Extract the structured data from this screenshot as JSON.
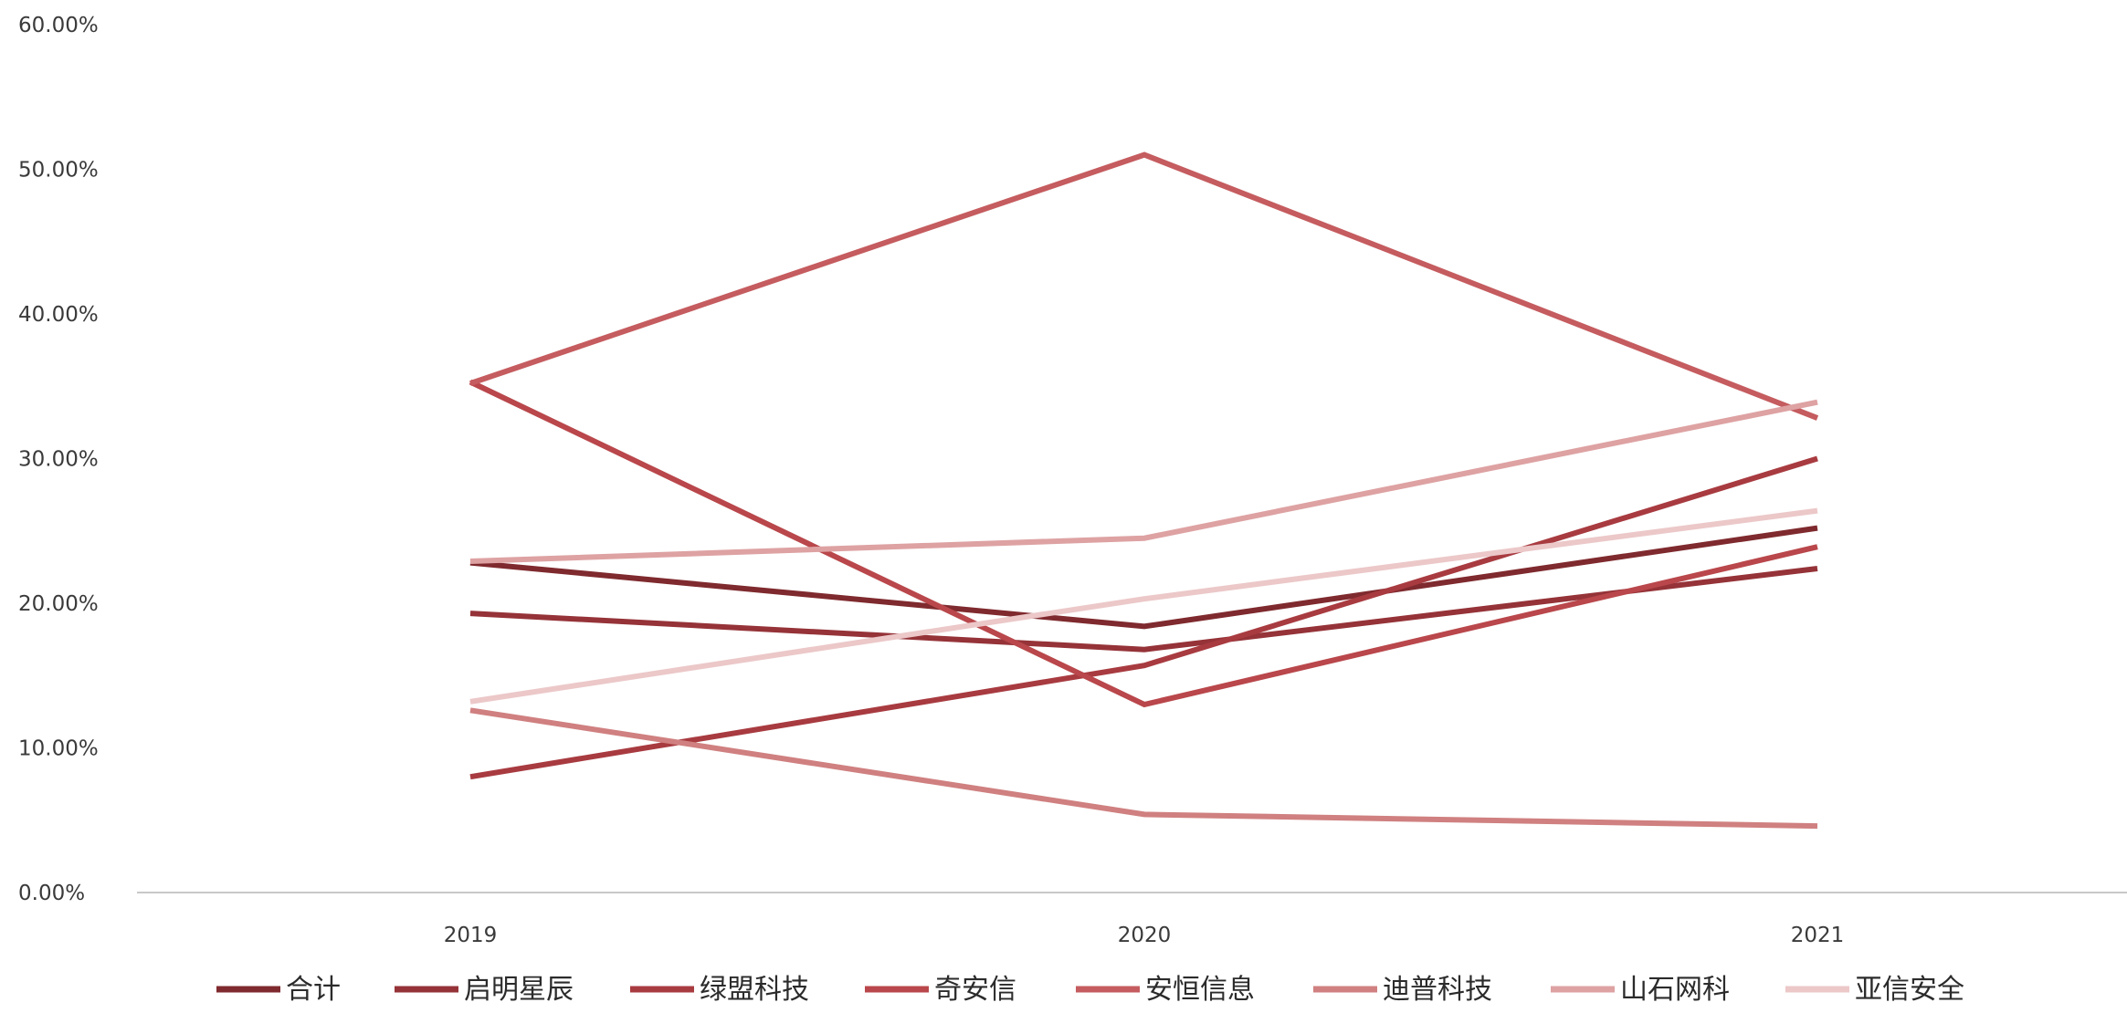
{
  "chart_data": {
    "type": "line",
    "title": "",
    "xlabel": "",
    "ylabel": "",
    "categories": [
      "2019",
      "2020",
      "2021"
    ],
    "ylim": [
      0,
      60
    ],
    "yticks": [
      0,
      10,
      20,
      30,
      40,
      50,
      60
    ],
    "ytick_labels": [
      "0.00%",
      "10.00%",
      "20.00%",
      "30.00%",
      "40.00%",
      "50.00%",
      "60.00%"
    ],
    "grid": false,
    "legend_position": "bottom",
    "series": [
      {
        "name": "合计",
        "values": [
          22.8,
          18.4,
          25.2
        ],
        "color": "#7f2a2e"
      },
      {
        "name": "启明星辰",
        "values": [
          19.3,
          16.8,
          22.4
        ],
        "color": "#953338"
      },
      {
        "name": "绿盟科技",
        "values": [
          8.0,
          15.7,
          30.0
        ],
        "color": "#a83b40"
      },
      {
        "name": "奇安信",
        "values": [
          35.3,
          13.0,
          23.9
        ],
        "color": "#b9474b"
      },
      {
        "name": "安恒信息",
        "values": [
          35.2,
          51.0,
          32.8
        ],
        "color": "#c55c5f"
      },
      {
        "name": "迪普科技",
        "values": [
          12.6,
          5.4,
          4.6
        ],
        "color": "#d08080"
      },
      {
        "name": "山石网科",
        "values": [
          22.9,
          24.5,
          33.9
        ],
        "color": "#dea2a3"
      },
      {
        "name": "亚信安全",
        "values": [
          13.2,
          20.3,
          26.4
        ],
        "color": "#ecc8c9"
      }
    ]
  }
}
